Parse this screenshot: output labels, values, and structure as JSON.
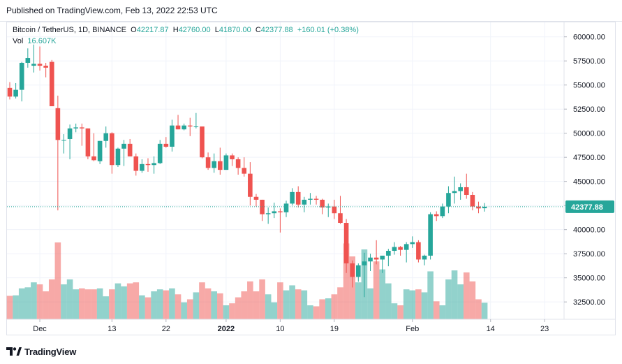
{
  "published": "Published on TradingView.com, Feb 13, 2022 22:53 UTC",
  "legend": {
    "symbol": "Bitcoin / TetherUS, 1D, BINANCE",
    "o_label": "O",
    "o_value": "42217.87",
    "h_label": "H",
    "h_value": "42760.00",
    "l_label": "L",
    "l_value": "41870.00",
    "c_label": "C",
    "c_value": "42377.88",
    "change": "+160.01 (+0.38%)",
    "vol_label": "Vol",
    "vol_value": "16.607K"
  },
  "last_price_label": "42377.88",
  "footer": {
    "brand": "TradingView"
  },
  "colors": {
    "up": "#26a69a",
    "down": "#ef5350",
    "up_vol": "#26a69a",
    "down_vol": "#ef5350",
    "grid": "#f0f3fa",
    "axis_text": "#131722"
  },
  "chart_data": {
    "type": "candlestick",
    "title": "Bitcoin / TetherUS, 1D, BINANCE",
    "ylim": [
      30700,
      61500
    ],
    "y_ticks": [
      60000,
      57500,
      55000,
      52500,
      50000,
      47500,
      45000,
      42500,
      40000,
      37500,
      35000,
      32500
    ],
    "y_tick_labels": [
      "60000.00",
      "57500.00",
      "55000.00",
      "52500.00",
      "50000.00",
      "47500.00",
      "45000.00",
      "42500.00",
      "40000.00",
      "37500.00",
      "35000.00",
      "32500.00"
    ],
    "x_tick_labels": [
      {
        "label": "Dec",
        "date": "2021-12-01"
      },
      {
        "label": "13",
        "date": "2021-12-13"
      },
      {
        "label": "22",
        "date": "2021-12-22"
      },
      {
        "label": "2022",
        "date": "2022-01-01"
      },
      {
        "label": "10",
        "date": "2022-01-10"
      },
      {
        "label": "19",
        "date": "2022-01-19"
      },
      {
        "label": "Feb",
        "date": "2022-02-01"
      },
      {
        "label": "14",
        "date": "2022-02-14"
      },
      {
        "label": "23",
        "date": "2022-02-23"
      }
    ],
    "x_range": [
      "2021-11-26",
      "2022-02-26"
    ],
    "last_price": 42377.88,
    "candles": [
      {
        "date": "2021-11-26",
        "o": 54700,
        "h": 55300,
        "l": 53500,
        "c": 53800,
        "v": 23.5
      },
      {
        "date": "2021-11-27",
        "o": 53800,
        "h": 55200,
        "l": 53600,
        "c": 54500,
        "v": 24.0
      },
      {
        "date": "2021-11-28",
        "o": 54500,
        "h": 57400,
        "l": 53300,
        "c": 57300,
        "v": 31.0
      },
      {
        "date": "2021-11-29",
        "o": 57300,
        "h": 58800,
        "l": 56800,
        "c": 57800,
        "v": 32.0
      },
      {
        "date": "2021-11-30",
        "o": 57000,
        "h": 59200,
        "l": 56300,
        "c": 57200,
        "v": 37.0
      },
      {
        "date": "2021-12-01",
        "o": 57200,
        "h": 59000,
        "l": 56500,
        "c": 57000,
        "v": 35.0
      },
      {
        "date": "2021-12-02",
        "o": 57000,
        "h": 57300,
        "l": 55800,
        "c": 56800,
        "v": 28.0
      },
      {
        "date": "2021-12-03",
        "o": 57400,
        "h": 57600,
        "l": 52900,
        "c": 52800,
        "v": 40.0
      },
      {
        "date": "2021-12-04",
        "o": 52600,
        "h": 53900,
        "l": 42000,
        "c": 49300,
        "v": 77.0
      },
      {
        "date": "2021-12-05",
        "o": 49300,
        "h": 49900,
        "l": 47900,
        "c": 49300,
        "v": 35.0
      },
      {
        "date": "2021-12-06",
        "o": 49400,
        "h": 50900,
        "l": 47300,
        "c": 50500,
        "v": 40.0
      },
      {
        "date": "2021-12-07",
        "o": 50500,
        "h": 51000,
        "l": 50100,
        "c": 50600,
        "v": 30.0
      },
      {
        "date": "2021-12-08",
        "o": 50600,
        "h": 51000,
        "l": 48700,
        "c": 50500,
        "v": 31.0
      },
      {
        "date": "2021-12-09",
        "o": 50500,
        "h": 50500,
        "l": 47300,
        "c": 47600,
        "v": 30.0
      },
      {
        "date": "2021-12-10",
        "o": 47600,
        "h": 50000,
        "l": 47100,
        "c": 47200,
        "v": 30.0
      },
      {
        "date": "2021-12-11",
        "o": 47100,
        "h": 49200,
        "l": 46800,
        "c": 49200,
        "v": 31.0
      },
      {
        "date": "2021-12-12",
        "o": 49200,
        "h": 50700,
        "l": 48500,
        "c": 50000,
        "v": 23.0
      },
      {
        "date": "2021-12-13",
        "o": 50000,
        "h": 50100,
        "l": 45800,
        "c": 46700,
        "v": 30.0
      },
      {
        "date": "2021-12-14",
        "o": 46700,
        "h": 48500,
        "l": 46500,
        "c": 48400,
        "v": 36.0
      },
      {
        "date": "2021-12-15",
        "o": 48400,
        "h": 49300,
        "l": 46600,
        "c": 48900,
        "v": 33.0
      },
      {
        "date": "2021-12-16",
        "o": 48900,
        "h": 49400,
        "l": 47600,
        "c": 47600,
        "v": 36.0
      },
      {
        "date": "2021-12-17",
        "o": 47600,
        "h": 47900,
        "l": 45600,
        "c": 46100,
        "v": 37.0
      },
      {
        "date": "2021-12-18",
        "o": 46100,
        "h": 47300,
        "l": 45900,
        "c": 46800,
        "v": 24.0
      },
      {
        "date": "2021-12-19",
        "o": 46800,
        "h": 47400,
        "l": 46000,
        "c": 46700,
        "v": 22.0
      },
      {
        "date": "2021-12-20",
        "o": 46700,
        "h": 47600,
        "l": 45800,
        "c": 46900,
        "v": 28.0
      },
      {
        "date": "2021-12-21",
        "o": 46900,
        "h": 49300,
        "l": 46800,
        "c": 48900,
        "v": 30.0
      },
      {
        "date": "2021-12-22",
        "o": 48900,
        "h": 49600,
        "l": 48500,
        "c": 48600,
        "v": 29.0
      },
      {
        "date": "2021-12-23",
        "o": 48600,
        "h": 51400,
        "l": 48100,
        "c": 50800,
        "v": 31.0
      },
      {
        "date": "2021-12-24",
        "o": 50800,
        "h": 51900,
        "l": 50400,
        "c": 50400,
        "v": 25.0
      },
      {
        "date": "2021-12-25",
        "o": 50400,
        "h": 51000,
        "l": 50300,
        "c": 50800,
        "v": 17.0
      },
      {
        "date": "2021-12-26",
        "o": 50800,
        "h": 51600,
        "l": 49700,
        "c": 50700,
        "v": 20.0
      },
      {
        "date": "2021-12-27",
        "o": 50700,
        "h": 52100,
        "l": 50500,
        "c": 50700,
        "v": 27.0
      },
      {
        "date": "2021-12-28",
        "o": 50700,
        "h": 50700,
        "l": 47400,
        "c": 47500,
        "v": 37.0
      },
      {
        "date": "2021-12-29",
        "o": 47500,
        "h": 48000,
        "l": 46200,
        "c": 46400,
        "v": 31.0
      },
      {
        "date": "2021-12-30",
        "o": 46400,
        "h": 47900,
        "l": 45900,
        "c": 47100,
        "v": 28.0
      },
      {
        "date": "2021-12-31",
        "o": 47100,
        "h": 48500,
        "l": 45700,
        "c": 46200,
        "v": 26.0
      },
      {
        "date": "2022-01-01",
        "o": 46200,
        "h": 47900,
        "l": 46200,
        "c": 47700,
        "v": 14.0
      },
      {
        "date": "2022-01-02",
        "o": 47700,
        "h": 47900,
        "l": 46600,
        "c": 47300,
        "v": 16.0
      },
      {
        "date": "2022-01-03",
        "o": 47300,
        "h": 47500,
        "l": 45700,
        "c": 46400,
        "v": 22.0
      },
      {
        "date": "2022-01-04",
        "o": 46400,
        "h": 47500,
        "l": 45500,
        "c": 45800,
        "v": 28.0
      },
      {
        "date": "2022-01-05",
        "o": 45800,
        "h": 47000,
        "l": 42500,
        "c": 43400,
        "v": 38.0
      },
      {
        "date": "2022-01-06",
        "o": 43400,
        "h": 43700,
        "l": 42400,
        "c": 43100,
        "v": 28.0
      },
      {
        "date": "2022-01-07",
        "o": 43100,
        "h": 43100,
        "l": 40900,
        "c": 41600,
        "v": 40.0
      },
      {
        "date": "2022-01-08",
        "o": 41600,
        "h": 42300,
        "l": 40600,
        "c": 41700,
        "v": 25.0
      },
      {
        "date": "2022-01-09",
        "o": 41700,
        "h": 42800,
        "l": 41200,
        "c": 41900,
        "v": 17.0
      },
      {
        "date": "2022-01-10",
        "o": 41900,
        "h": 42200,
        "l": 39700,
        "c": 41800,
        "v": 37.0
      },
      {
        "date": "2022-01-11",
        "o": 41800,
        "h": 43000,
        "l": 41300,
        "c": 42700,
        "v": 29.0
      },
      {
        "date": "2022-01-12",
        "o": 42700,
        "h": 44300,
        "l": 42500,
        "c": 43900,
        "v": 34.0
      },
      {
        "date": "2022-01-13",
        "o": 43900,
        "h": 44500,
        "l": 42300,
        "c": 42600,
        "v": 30.0
      },
      {
        "date": "2022-01-14",
        "o": 42600,
        "h": 43400,
        "l": 41800,
        "c": 43100,
        "v": 29.0
      },
      {
        "date": "2022-01-15",
        "o": 43100,
        "h": 43800,
        "l": 42600,
        "c": 43200,
        "v": 14.0
      },
      {
        "date": "2022-01-16",
        "o": 43200,
        "h": 43500,
        "l": 42600,
        "c": 43100,
        "v": 13.0
      },
      {
        "date": "2022-01-17",
        "o": 43100,
        "h": 43200,
        "l": 41600,
        "c": 42300,
        "v": 20.0
      },
      {
        "date": "2022-01-18",
        "o": 42300,
        "h": 42700,
        "l": 41300,
        "c": 42400,
        "v": 21.0
      },
      {
        "date": "2022-01-19",
        "o": 42400,
        "h": 43100,
        "l": 41100,
        "c": 41700,
        "v": 25.0
      },
      {
        "date": "2022-01-20",
        "o": 41700,
        "h": 43500,
        "l": 40600,
        "c": 40700,
        "v": 32.0
      },
      {
        "date": "2022-01-21",
        "o": 40700,
        "h": 41100,
        "l": 35500,
        "c": 36500,
        "v": 76.0
      },
      {
        "date": "2022-01-22",
        "o": 36500,
        "h": 36800,
        "l": 34000,
        "c": 35100,
        "v": 63.0
      },
      {
        "date": "2022-01-23",
        "o": 35100,
        "h": 36500,
        "l": 34600,
        "c": 36300,
        "v": 37.0
      },
      {
        "date": "2022-01-24",
        "o": 36300,
        "h": 37600,
        "l": 33000,
        "c": 36700,
        "v": 70.0
      },
      {
        "date": "2022-01-25",
        "o": 36700,
        "h": 37500,
        "l": 35700,
        "c": 37100,
        "v": 31.0
      },
      {
        "date": "2022-01-26",
        "o": 37100,
        "h": 38900,
        "l": 36400,
        "c": 36900,
        "v": 58.0
      },
      {
        "date": "2022-01-27",
        "o": 36900,
        "h": 37200,
        "l": 35500,
        "c": 37300,
        "v": 50.0
      },
      {
        "date": "2022-01-28",
        "o": 37300,
        "h": 38000,
        "l": 36200,
        "c": 37800,
        "v": 36.0
      },
      {
        "date": "2022-01-29",
        "o": 37800,
        "h": 38700,
        "l": 37400,
        "c": 38200,
        "v": 16.0
      },
      {
        "date": "2022-01-30",
        "o": 38200,
        "h": 38300,
        "l": 37300,
        "c": 37900,
        "v": 14.0
      },
      {
        "date": "2022-01-31",
        "o": 37900,
        "h": 38700,
        "l": 36600,
        "c": 38500,
        "v": 30.0
      },
      {
        "date": "2022-02-01",
        "o": 38500,
        "h": 39300,
        "l": 38100,
        "c": 38700,
        "v": 29.0
      },
      {
        "date": "2022-02-02",
        "o": 38700,
        "h": 38900,
        "l": 36600,
        "c": 36900,
        "v": 30.0
      },
      {
        "date": "2022-02-03",
        "o": 36900,
        "h": 37400,
        "l": 36300,
        "c": 37300,
        "v": 27.0
      },
      {
        "date": "2022-02-04",
        "o": 37300,
        "h": 41800,
        "l": 36900,
        "c": 41600,
        "v": 48.0
      },
      {
        "date": "2022-02-05",
        "o": 41600,
        "h": 41900,
        "l": 40900,
        "c": 41400,
        "v": 18.0
      },
      {
        "date": "2022-02-06",
        "o": 41400,
        "h": 42700,
        "l": 41200,
        "c": 42400,
        "v": 14.0
      },
      {
        "date": "2022-02-07",
        "o": 42400,
        "h": 44500,
        "l": 41700,
        "c": 43800,
        "v": 40.0
      },
      {
        "date": "2022-02-08",
        "o": 43800,
        "h": 45500,
        "l": 42700,
        "c": 44000,
        "v": 49.0
      },
      {
        "date": "2022-02-09",
        "o": 44000,
        "h": 44800,
        "l": 43100,
        "c": 44400,
        "v": 35.0
      },
      {
        "date": "2022-02-10",
        "o": 44400,
        "h": 45800,
        "l": 43200,
        "c": 43600,
        "v": 47.0
      },
      {
        "date": "2022-02-11",
        "o": 43600,
        "h": 43900,
        "l": 42000,
        "c": 42400,
        "v": 38.0
      },
      {
        "date": "2022-02-12",
        "o": 42400,
        "h": 42900,
        "l": 41700,
        "c": 42200,
        "v": 20.0
      },
      {
        "date": "2022-02-13",
        "o": 42217.87,
        "h": 42760,
        "l": 41870,
        "c": 42377.88,
        "v": 16.6
      }
    ]
  }
}
